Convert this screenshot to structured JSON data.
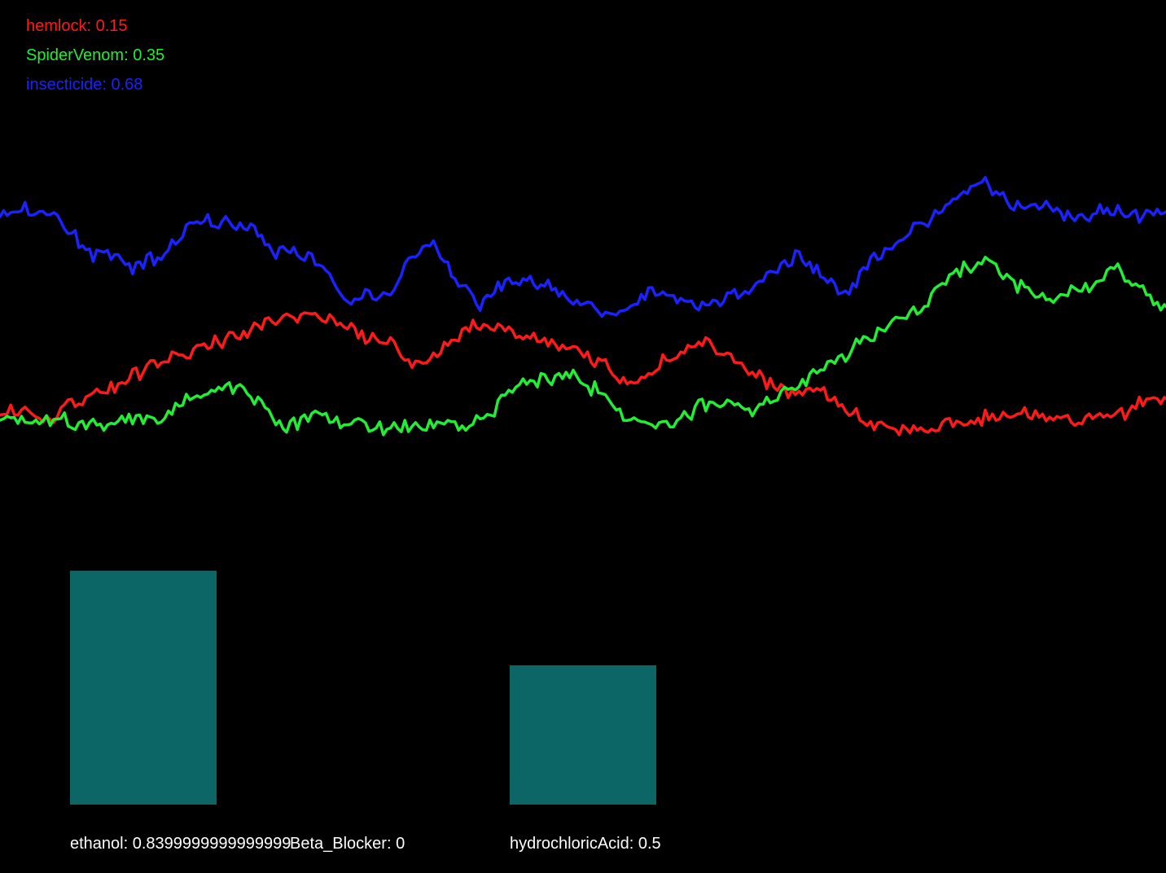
{
  "legend": [
    {
      "label": "hemlock: 0.15",
      "color": "#ff1a1a"
    },
    {
      "label": "SpiderVenom: 0.35",
      "color": "#22ee33"
    },
    {
      "label": "insecticide: 0.68",
      "color": "#1a22ff"
    }
  ],
  "chart_data": [
    {
      "type": "line",
      "series": [
        {
          "name": "hemlock",
          "color": "#ff1a1a",
          "anchors": [
            0.64,
            0.96,
            0.6,
            1.0,
            1.18,
            1.6,
            1.92,
            2.2,
            2.44,
            2.72,
            2.88,
            3.16,
            3.4,
            3.6,
            3.4,
            3.04,
            2.84,
            2.6,
            2.0,
            2.6,
            3.2,
            3.04,
            3.0,
            2.88,
            2.6,
            2.48,
            1.95,
            1.6,
            1.95,
            2.4,
            2.72,
            2.48,
            2.0,
            1.6,
            1.24,
            1.3,
            1.0,
            0.64,
            0.24,
            0.24,
            0.4,
            0.48,
            0.64,
            0.72,
            0.8,
            0.52,
            0.48,
            0.6,
            0.72,
            1.0,
            1.2
          ]
        },
        {
          "name": "SpiderVenom",
          "color": "#22ee33",
          "anchors": [
            0.48,
            0.56,
            0.6,
            0.44,
            0.4,
            0.6,
            0.44,
            1.04,
            1.28,
            1.52,
            1.0,
            0.32,
            0.72,
            0.4,
            0.48,
            0.32,
            0.48,
            0.4,
            0.4,
            0.88,
            1.44,
            1.76,
            1.76,
            1.44,
            0.64,
            0.4,
            0.4,
            0.96,
            1.04,
            0.8,
            1.2,
            1.6,
            2.1,
            2.64,
            3.04,
            3.4,
            4.0,
            4.8,
            5.0,
            4.4,
            4.0,
            4.0,
            4.24,
            4.8,
            4.24,
            3.6
          ]
        },
        {
          "name": "insecticide",
          "color": "#1a22ff",
          "anchors": [
            6.2,
            6.4,
            6.16,
            5.92,
            5.2,
            5.12,
            4.8,
            5.12,
            5.92,
            6.16,
            6.0,
            6.0,
            5.2,
            5.28,
            4.96,
            3.92,
            3.96,
            4.08,
            5.12,
            5.52,
            4.48,
            3.76,
            4.32,
            4.48,
            4.2,
            3.92,
            3.6,
            3.36,
            4.0,
            4.2,
            3.76,
            3.8,
            4.0,
            4.24,
            4.8,
            5.12,
            4.48,
            4.08,
            4.96,
            5.44,
            5.92,
            6.24,
            6.8,
            7.2,
            6.6,
            6.4,
            6.4,
            6.2,
            6.4,
            6.4,
            6.24,
            6.4
          ]
        }
      ]
    },
    {
      "type": "bar",
      "categories": [
        "ethanol",
        "Beta_Blocker",
        "hydrochloricAcid"
      ],
      "values": [
        0.8399999999999999,
        0,
        0.5
      ],
      "labels": [
        "ethanol: 0.8399999999999999",
        "Beta_Blocker: 0",
        "hydrochloricAcid: 0.5"
      ],
      "color": "#0d6666"
    }
  ]
}
